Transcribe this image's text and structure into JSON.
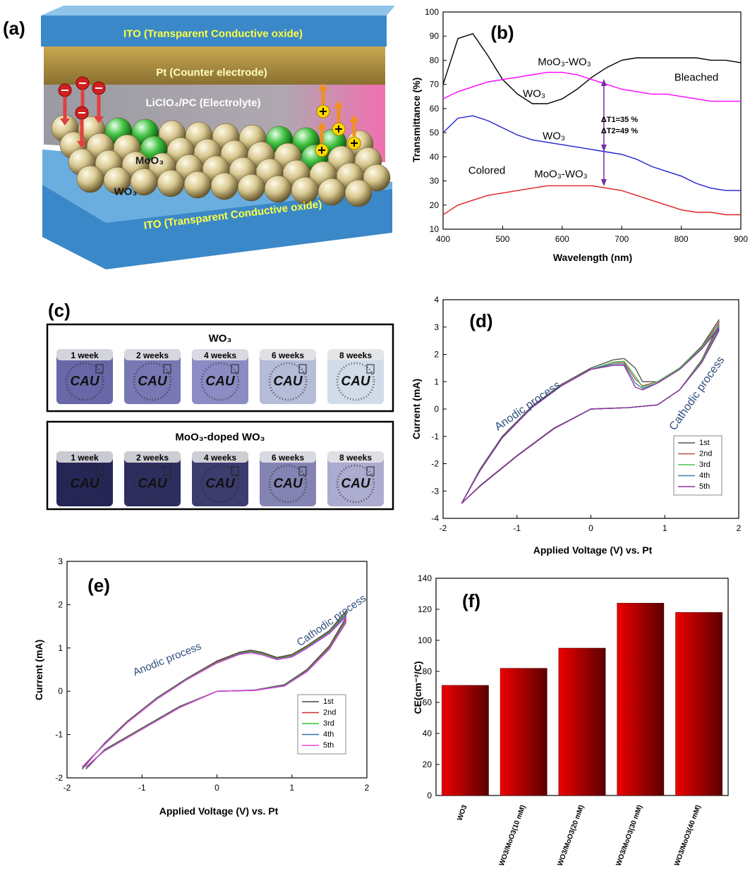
{
  "schematic": {
    "label": "(a)",
    "top_layer": "ITO (Transparent Conductive  oxide)",
    "counter_electrode": "Pt (Counter electrode)",
    "electrolyte": "LiClO₄/PC (Electrolyte)",
    "dopant": "MoO₃",
    "film": "WO₃",
    "bottom_layer": "ITO (Transparent Conductive  oxide)"
  },
  "photos": {
    "label": "(c)",
    "logo": "CAU",
    "groups": [
      {
        "title": "WO₃",
        "samples": [
          "1 week",
          "2 weeks",
          "4 weeks",
          "6 weeks",
          "8 weeks"
        ]
      },
      {
        "title": "MoO₃-doped WO₃",
        "samples": [
          "1 week",
          "2 weeks",
          "4 weeks",
          "6 weeks",
          "8 weeks"
        ]
      }
    ]
  },
  "chart_data": [
    {
      "type": "line",
      "title": "(b)",
      "x_label": "Wavelength (nm)",
      "y_label": "Transmittance (%)",
      "x": [
        400,
        425,
        450,
        475,
        500,
        525,
        550,
        575,
        600,
        625,
        650,
        675,
        700,
        725,
        750,
        775,
        800,
        825,
        850,
        875,
        900
      ],
      "xlim": [
        400,
        900
      ],
      "xticks": [
        400,
        500,
        600,
        700,
        800,
        900
      ],
      "ylim": [
        10,
        100
      ],
      "yticks": [
        10,
        20,
        30,
        40,
        50,
        60,
        70,
        80,
        90,
        100
      ],
      "series": [
        {
          "name": "WO₃",
          "color": "#000000",
          "values": [
            70,
            89,
            91,
            82,
            72,
            66,
            62,
            62,
            64,
            68,
            73,
            77,
            80,
            81,
            81,
            81,
            81,
            81,
            80,
            80,
            79
          ]
        },
        {
          "name": "MoO₃-WO₃",
          "color": "#ff00ff",
          "values": [
            64,
            67,
            69,
            71,
            72,
            73,
            74,
            75,
            75,
            74,
            72,
            70,
            68,
            67,
            66,
            66,
            65,
            64,
            63,
            63,
            63
          ]
        },
        {
          "name": "WO₃",
          "color": "#2020d0",
          "values": [
            50,
            56,
            57,
            55,
            52,
            49,
            47,
            46,
            45,
            44,
            43,
            42,
            41,
            39,
            36,
            34,
            32,
            29,
            27,
            26,
            26
          ]
        },
        {
          "name": "MoO₃-WO₃",
          "color": "#e02020",
          "values": [
            16,
            20,
            22,
            24,
            25,
            26,
            27,
            28,
            28,
            28,
            28,
            27,
            26,
            24,
            22,
            20,
            18,
            17,
            17,
            16,
            16
          ]
        }
      ],
      "annotations": [
        "Bleached",
        "Colored",
        "ΔT1=35  %",
        "ΔT2=49  %"
      ]
    },
    {
      "type": "line",
      "title": "(d)",
      "x_label": "Applied Voltage (V) vs. Pt",
      "y_label": "Current (mA)",
      "x": [
        -1.75,
        -1.5,
        -1.2,
        -0.8,
        -0.4,
        0,
        0.3,
        0.45,
        0.6,
        0.7,
        0.9,
        1.2,
        1.5,
        1.73,
        1.73,
        1.5,
        1.2,
        0.9,
        0.5,
        0,
        -0.5,
        -1,
        -1.5,
        -1.75
      ],
      "xlim": [
        -2,
        2
      ],
      "xticks": [
        -2,
        -1,
        0,
        1,
        2
      ],
      "ylim": [
        -4,
        4
      ],
      "yticks": [
        -4,
        -3,
        -2,
        -1,
        0,
        1,
        2,
        3,
        4
      ],
      "legend": "lower right",
      "series": [
        {
          "name": "1st",
          "color": "#555555",
          "values": [
            -3.45,
            -2.2,
            -1.0,
            0.1,
            0.9,
            1.5,
            1.8,
            1.85,
            1.5,
            1.0,
            1.0,
            1.5,
            2.3,
            3.25,
            3.1,
            1.8,
            0.7,
            0.15,
            0.05,
            0,
            -0.7,
            -1.7,
            -2.8,
            -3.45
          ]
        },
        {
          "name": "2nd",
          "color": "#c0504d",
          "values": [
            -3.45,
            -2.25,
            -1.05,
            0.05,
            0.85,
            1.45,
            1.7,
            1.7,
            1.1,
            0.85,
            1.0,
            1.5,
            2.25,
            3.15,
            3.0,
            1.75,
            0.7,
            0.15,
            0.05,
            0,
            -0.72,
            -1.72,
            -2.82,
            -3.45
          ]
        },
        {
          "name": "3rd",
          "color": "#4fc04f",
          "values": [
            -3.45,
            -2.25,
            -1.05,
            0.05,
            0.85,
            1.45,
            1.72,
            1.75,
            1.2,
            0.8,
            1.0,
            1.5,
            2.25,
            3.05,
            2.95,
            1.75,
            0.7,
            0.15,
            0.05,
            0,
            -0.72,
            -1.72,
            -2.82,
            -3.45
          ]
        },
        {
          "name": "4th",
          "color": "#3a7fa8",
          "values": [
            -3.45,
            -2.25,
            -1.05,
            0.05,
            0.85,
            1.45,
            1.65,
            1.65,
            0.95,
            0.75,
            0.95,
            1.45,
            2.2,
            3.0,
            2.9,
            1.7,
            0.7,
            0.15,
            0.05,
            0,
            -0.72,
            -1.72,
            -2.82,
            -3.45
          ]
        },
        {
          "name": "5th",
          "color": "#9030a0",
          "values": [
            -3.45,
            -2.25,
            -1.05,
            0.05,
            0.85,
            1.45,
            1.6,
            1.6,
            0.8,
            0.7,
            0.95,
            1.45,
            2.2,
            2.95,
            2.85,
            1.7,
            0.7,
            0.15,
            0.05,
            0,
            -0.72,
            -1.72,
            -2.82,
            -3.45
          ]
        }
      ],
      "annotations": [
        "Anodic process",
        "Cathodic process"
      ]
    },
    {
      "type": "line",
      "title": "(e)",
      "x_label": "Applied Voltage (V) vs. Pt",
      "y_label": "Current (mA)",
      "x": [
        -1.8,
        -1.5,
        -1.2,
        -0.8,
        -0.4,
        0,
        0.3,
        0.45,
        0.6,
        0.8,
        1.0,
        1.2,
        1.5,
        1.72,
        1.72,
        1.5,
        1.2,
        0.9,
        0.5,
        0,
        -0.5,
        -1,
        -1.5,
        -1.75
      ],
      "xlim": [
        -2,
        2
      ],
      "xticks": [
        -2,
        -1,
        0,
        1,
        2
      ],
      "ylim": [
        -2,
        3
      ],
      "yticks": [
        -2,
        -1,
        0,
        1,
        2,
        3
      ],
      "legend": "lower right",
      "series": [
        {
          "name": "1st",
          "color": "#444444",
          "values": [
            -1.8,
            -1.2,
            -0.7,
            -0.15,
            0.3,
            0.7,
            0.9,
            0.95,
            0.9,
            0.78,
            0.85,
            1.05,
            1.4,
            1.85,
            1.7,
            1.05,
            0.5,
            0.15,
            0.03,
            0,
            -0.35,
            -0.85,
            -1.35,
            -1.8
          ]
        },
        {
          "name": "2nd",
          "color": "#d03030",
          "values": [
            -1.75,
            -1.22,
            -0.72,
            -0.17,
            0.28,
            0.68,
            0.88,
            0.93,
            0.88,
            0.76,
            0.83,
            1.03,
            1.38,
            1.8,
            1.65,
            1.02,
            0.48,
            0.13,
            0.02,
            0,
            -0.37,
            -0.87,
            -1.37,
            -1.75
          ]
        },
        {
          "name": "3rd",
          "color": "#30c030",
          "values": [
            -1.75,
            -1.22,
            -0.72,
            -0.17,
            0.28,
            0.67,
            0.87,
            0.92,
            0.87,
            0.75,
            0.82,
            1.02,
            1.37,
            1.78,
            1.63,
            1.0,
            0.47,
            0.13,
            0.02,
            0,
            -0.37,
            -0.87,
            -1.37,
            -1.75
          ]
        },
        {
          "name": "4th",
          "color": "#3070b0",
          "values": [
            -1.75,
            -1.23,
            -0.73,
            -0.18,
            0.27,
            0.66,
            0.86,
            0.9,
            0.85,
            0.74,
            0.8,
            1.0,
            1.35,
            1.75,
            1.6,
            0.98,
            0.46,
            0.12,
            0.02,
            0,
            -0.38,
            -0.88,
            -1.38,
            -1.75
          ]
        },
        {
          "name": "5th",
          "color": "#e040e0",
          "values": [
            -1.75,
            -1.23,
            -0.73,
            -0.18,
            0.27,
            0.65,
            0.85,
            0.89,
            0.84,
            0.73,
            0.79,
            0.99,
            1.33,
            1.72,
            1.58,
            0.97,
            0.45,
            0.12,
            0.02,
            0,
            -0.38,
            -0.88,
            -1.38,
            -1.75
          ]
        }
      ],
      "annotations": [
        "Anodic process",
        "Cathodic process"
      ]
    },
    {
      "type": "bar",
      "title": "(f)",
      "y_label": "CE(cm⁻²/C)",
      "categories": [
        "WO3",
        "WO3/MoO3(10 mM)",
        "WO3/MoO3(20 mM)",
        "WO3/MoO3(30 mM)",
        "WO3/MoO3(40 mM)"
      ],
      "values": [
        71,
        82,
        95,
        124,
        118
      ],
      "color": "#ee0000",
      "ylim": [
        0,
        140
      ],
      "yticks": [
        0,
        20,
        40,
        60,
        80,
        100,
        120,
        140
      ]
    }
  ]
}
